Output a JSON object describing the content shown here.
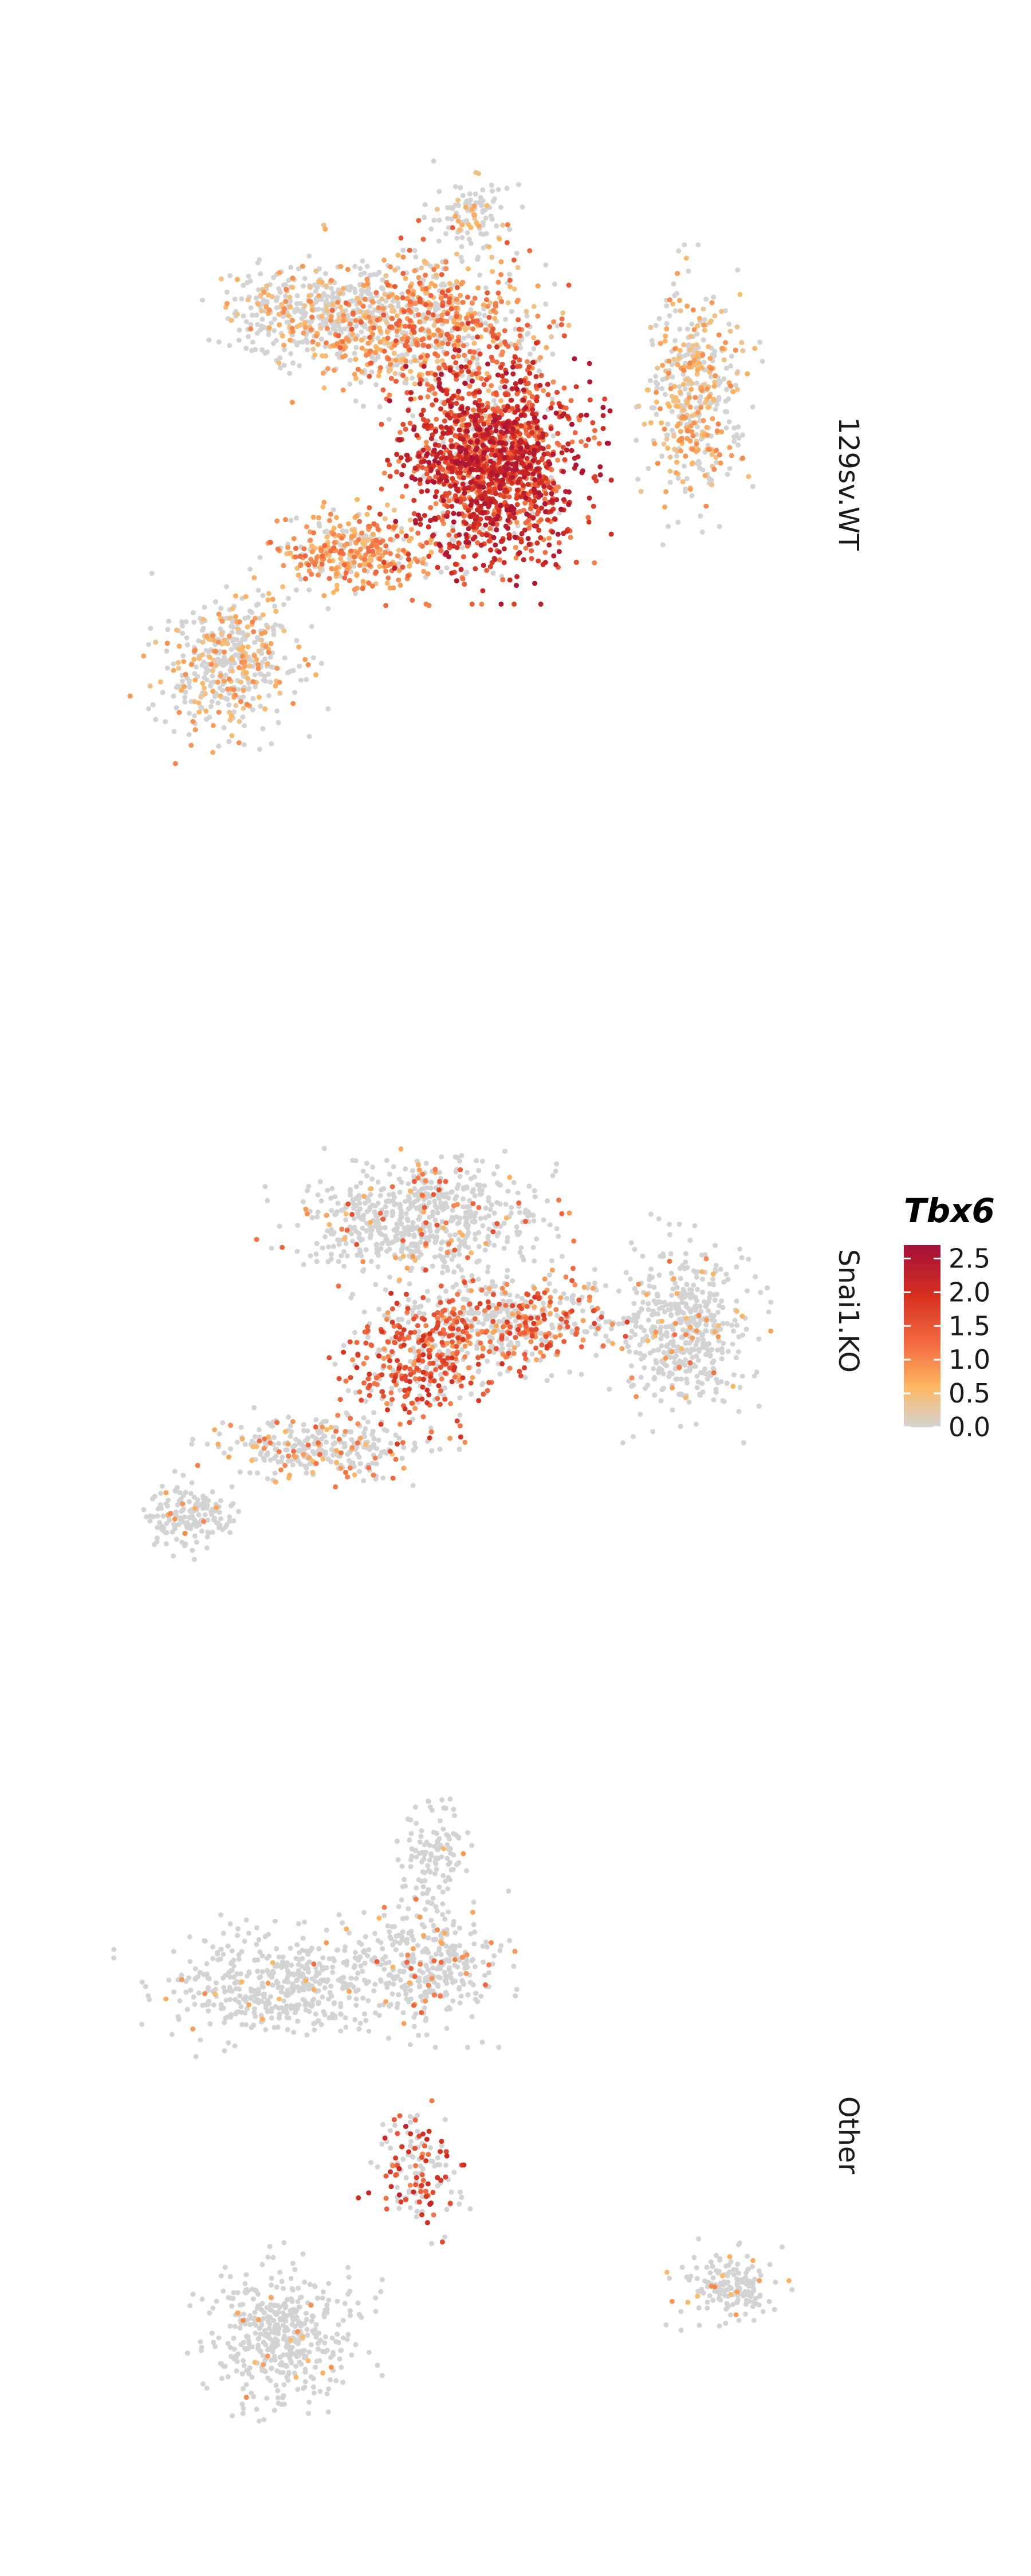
{
  "chart_data": {
    "type": "scatter",
    "title": "",
    "xlabel": "",
    "ylabel": "",
    "grid": false,
    "legend": {
      "title": "Tbx6",
      "placement": "right",
      "colorbar_ticks": [
        0.0,
        0.5,
        1.0,
        1.5,
        2.0,
        2.5
      ],
      "colorbar_tick_labels": [
        "0.0",
        "0.5",
        "1.0",
        "1.5",
        "2.0",
        "2.5"
      ],
      "range": [
        0,
        2.7
      ]
    },
    "colors": {
      "zero": "#d3d3d3",
      "low": "#fdb863",
      "mid": "#f46d43",
      "high": "#d7301f",
      "max": "#a50f3a"
    },
    "facets": [
      {
        "name": "129sv.WT",
        "regions": [
          {
            "cx": 0.58,
            "cy": 0.5,
            "rx": 0.11,
            "ry": 0.13,
            "n": 1600,
            "expr": [
              0.9,
              2.6
            ],
            "zero_frac": 0.05
          },
          {
            "cx": 0.5,
            "cy": 0.3,
            "rx": 0.13,
            "ry": 0.1,
            "n": 700,
            "expr": [
              0.3,
              1.5
            ],
            "zero_frac": 0.35
          },
          {
            "cx": 0.33,
            "cy": 0.28,
            "rx": 0.12,
            "ry": 0.06,
            "n": 500,
            "expr": [
              0.3,
              1.0
            ],
            "zero_frac": 0.7
          },
          {
            "cx": 0.88,
            "cy": 0.4,
            "rx": 0.06,
            "ry": 0.14,
            "n": 450,
            "expr": [
              0.3,
              1.0
            ],
            "zero_frac": 0.5
          },
          {
            "cx": 0.38,
            "cy": 0.63,
            "rx": 0.1,
            "ry": 0.05,
            "n": 350,
            "expr": [
              0.4,
              1.3
            ],
            "zero_frac": 0.25
          },
          {
            "cx": 0.2,
            "cy": 0.8,
            "rx": 0.09,
            "ry": 0.09,
            "n": 450,
            "expr": [
              0.3,
              1.0
            ],
            "zero_frac": 0.6
          },
          {
            "cx": 0.55,
            "cy": 0.13,
            "rx": 0.05,
            "ry": 0.05,
            "n": 110,
            "expr": [
              0.3,
              0.8
            ],
            "zero_frac": 0.85
          }
        ]
      },
      {
        "name": "Snai1.KO",
        "regions": [
          {
            "cx": 0.48,
            "cy": 0.28,
            "rx": 0.15,
            "ry": 0.09,
            "n": 650,
            "expr": [
              0.5,
              1.6
            ],
            "zero_frac": 0.88
          },
          {
            "cx": 0.86,
            "cy": 0.48,
            "rx": 0.08,
            "ry": 0.13,
            "n": 500,
            "expr": [
              0.5,
              1.2
            ],
            "zero_frac": 0.93
          },
          {
            "cx": 0.6,
            "cy": 0.47,
            "rx": 0.14,
            "ry": 0.07,
            "n": 550,
            "expr": [
              0.7,
              1.8
            ],
            "zero_frac": 0.55
          },
          {
            "cx": 0.47,
            "cy": 0.55,
            "rx": 0.09,
            "ry": 0.1,
            "n": 320,
            "expr": [
              0.8,
              2.0
            ],
            "zero_frac": 0.35
          },
          {
            "cx": 0.33,
            "cy": 0.7,
            "rx": 0.13,
            "ry": 0.05,
            "n": 300,
            "expr": [
              0.5,
              1.3
            ],
            "zero_frac": 0.75
          },
          {
            "cx": 0.14,
            "cy": 0.82,
            "rx": 0.06,
            "ry": 0.05,
            "n": 160,
            "expr": [
              0.5,
              1.0
            ],
            "zero_frac": 0.95
          }
        ]
      },
      {
        "name": "Other",
        "regions": [
          {
            "cx": 0.5,
            "cy": 0.12,
            "rx": 0.04,
            "ry": 0.06,
            "n": 110,
            "expr": [
              0.5,
              1.0
            ],
            "zero_frac": 0.98
          },
          {
            "cx": 0.28,
            "cy": 0.3,
            "rx": 0.15,
            "ry": 0.06,
            "n": 450,
            "expr": [
              0.5,
              1.0
            ],
            "zero_frac": 0.97
          },
          {
            "cx": 0.48,
            "cy": 0.27,
            "rx": 0.1,
            "ry": 0.07,
            "n": 350,
            "expr": [
              0.6,
              1.4
            ],
            "zero_frac": 0.88
          },
          {
            "cx": 0.47,
            "cy": 0.55,
            "rx": 0.05,
            "ry": 0.07,
            "n": 150,
            "expr": [
              1.0,
              2.3
            ],
            "zero_frac": 0.45
          },
          {
            "cx": 0.28,
            "cy": 0.77,
            "rx": 0.09,
            "ry": 0.08,
            "n": 450,
            "expr": [
              0.5,
              1.0
            ],
            "zero_frac": 0.97
          },
          {
            "cx": 0.92,
            "cy": 0.7,
            "rx": 0.06,
            "ry": 0.04,
            "n": 160,
            "expr": [
              0.5,
              1.0
            ],
            "zero_frac": 0.93
          }
        ]
      }
    ]
  }
}
